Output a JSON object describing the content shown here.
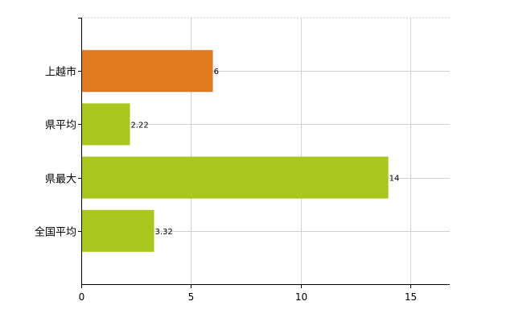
{
  "chart_data": {
    "type": "bar",
    "orientation": "horizontal",
    "categories": [
      "上越市",
      "県平均",
      "県最大",
      "全国平均"
    ],
    "values": [
      6,
      2.22,
      14,
      3.32
    ],
    "value_labels": [
      "6",
      "2.22",
      "14",
      "3.32"
    ],
    "bar_colors": [
      "#e07a1f",
      "#a8c81c",
      "#a8c81c",
      "#a8c81c"
    ],
    "xlim": [
      0,
      16.8
    ],
    "xticks": [
      0,
      5,
      10,
      15
    ],
    "xtick_labels": [
      "0",
      "5",
      "10",
      "15"
    ],
    "grid": true,
    "legend": "none"
  }
}
